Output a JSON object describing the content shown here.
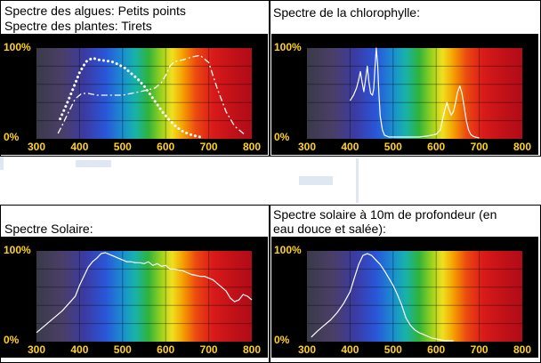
{
  "charts": [
    {
      "id": "algues",
      "title_lines": [
        "Spectre des algues: Petits points",
        "Spectre des plantes: Tirets"
      ],
      "chart_data": {
        "type": "line",
        "xlim": [
          300,
          800
        ],
        "ylim": [
          0,
          100
        ],
        "x_ticks": [
          "300",
          "400",
          "500",
          "600",
          "700",
          "800"
        ],
        "y_ticks": [
          "100%",
          "0%"
        ],
        "series": [
          {
            "style": "dotted",
            "x": [
              355,
              370,
              385,
              400,
              415,
              430,
              445,
              460,
              475,
              490,
              505,
              520,
              535,
              550,
              565,
              580,
              595,
              610,
              625,
              640,
              655,
              670,
              680
            ],
            "y": [
              22,
              38,
              55,
              73,
              85,
              89,
              87,
              86,
              85,
              82,
              78,
              72,
              66,
              58,
              48,
              38,
              28,
              20,
              13,
              8,
              5,
              3,
              2
            ]
          },
          {
            "style": "dashed",
            "x": [
              350,
              360,
              375,
              390,
              405,
              420,
              440,
              460,
              480,
              500,
              520,
              540,
              560,
              575,
              590,
              600,
              610,
              620,
              640,
              660,
              680,
              700,
              720,
              740,
              760,
              780,
              785
            ],
            "y": [
              6,
              15,
              30,
              44,
              50,
              50,
              48,
              48,
              48,
              48,
              50,
              52,
              54,
              56,
              62,
              70,
              80,
              85,
              87,
              90,
              92,
              84,
              55,
              30,
              14,
              6,
              4
            ]
          }
        ]
      }
    },
    {
      "id": "chlorophylle",
      "title_lines": [
        "Spectre de la chlorophylle:"
      ],
      "chart_data": {
        "type": "line",
        "xlim": [
          300,
          800
        ],
        "ylim": [
          0,
          100
        ],
        "x_ticks": [
          "300",
          "400",
          "500",
          "600",
          "700",
          "800"
        ],
        "y_ticks": [
          "100%",
          "0%"
        ],
        "series": [
          {
            "style": "solid",
            "x": [
              400,
              408,
              415,
              420,
              424,
              428,
              432,
              436,
              440,
              444,
              448,
              452,
              455,
              458,
              461,
              464,
              467,
              470,
              475,
              480,
              490,
              500,
              520,
              540,
              560,
              580,
              600,
              610,
              615,
              620,
              625,
              630,
              635,
              640,
              645,
              650,
              655,
              660,
              665,
              670,
              675,
              680,
              685,
              690,
              700
            ],
            "y": [
              42,
              48,
              56,
              65,
              74,
              62,
              52,
              65,
              80,
              62,
              50,
              48,
              55,
              80,
              100,
              82,
              50,
              25,
              10,
              4,
              2,
              2,
              2,
              2,
              2,
              3,
              5,
              10,
              22,
              32,
              40,
              32,
              26,
              30,
              40,
              52,
              58,
              50,
              35,
              20,
              10,
              5,
              3,
              2,
              1
            ]
          }
        ]
      }
    },
    {
      "id": "solaire",
      "title_lines": [
        "Spectre Solaire:"
      ],
      "chart_data": {
        "type": "line",
        "xlim": [
          300,
          800
        ],
        "ylim": [
          0,
          100
        ],
        "x_ticks": [
          "300",
          "400",
          "500",
          "600",
          "700",
          "800"
        ],
        "y_ticks": [
          "100%",
          "0%"
        ],
        "series": [
          {
            "style": "solid",
            "x": [
              300,
              315,
              330,
              345,
              360,
              375,
              390,
              400,
              410,
              420,
              430,
              440,
              450,
              460,
              470,
              480,
              490,
              500,
              510,
              520,
              530,
              540,
              550,
              560,
              570,
              580,
              590,
              600,
              610,
              620,
              630,
              640,
              650,
              660,
              670,
              680,
              690,
              700,
              710,
              720,
              730,
              740,
              750,
              760,
              770,
              780,
              790,
              800
            ],
            "y": [
              10,
              16,
              22,
              28,
              34,
              42,
              50,
              62,
              72,
              82,
              88,
              92,
              97,
              98,
              96,
              94,
              92,
              90,
              88,
              88,
              87,
              87,
              86,
              88,
              84,
              86,
              83,
              84,
              80,
              80,
              79,
              78,
              76,
              74,
              73,
              72,
              72,
              70,
              68,
              64,
              60,
              56,
              48,
              44,
              46,
              52,
              50,
              46
            ]
          }
        ]
      }
    },
    {
      "id": "profondeur",
      "title_lines": [
        "Spectre solaire à 10m de profondeur (en",
        "eau douce et salée):"
      ],
      "chart_data": {
        "type": "line",
        "xlim": [
          300,
          800
        ],
        "ylim": [
          0,
          100
        ],
        "x_ticks": [
          "300",
          "400",
          "500",
          "600",
          "700",
          "800"
        ],
        "y_ticks": [
          "100%",
          "0%"
        ],
        "series": [
          {
            "style": "solid",
            "x": [
              310,
              325,
              340,
              355,
              370,
              385,
              400,
              410,
              420,
              430,
              440,
              450,
              460,
              470,
              480,
              490,
              500,
              510,
              520,
              530,
              540,
              550,
              560,
              570,
              580,
              590,
              600,
              610,
              620,
              640
            ],
            "y": [
              5,
              12,
              18,
              24,
              32,
              42,
              55,
              70,
              85,
              95,
              97,
              95,
              90,
              85,
              78,
              70,
              62,
              52,
              40,
              26,
              18,
              13,
              10,
              8,
              6,
              4,
              3,
              2,
              1,
              1
            ]
          }
        ]
      }
    }
  ]
}
